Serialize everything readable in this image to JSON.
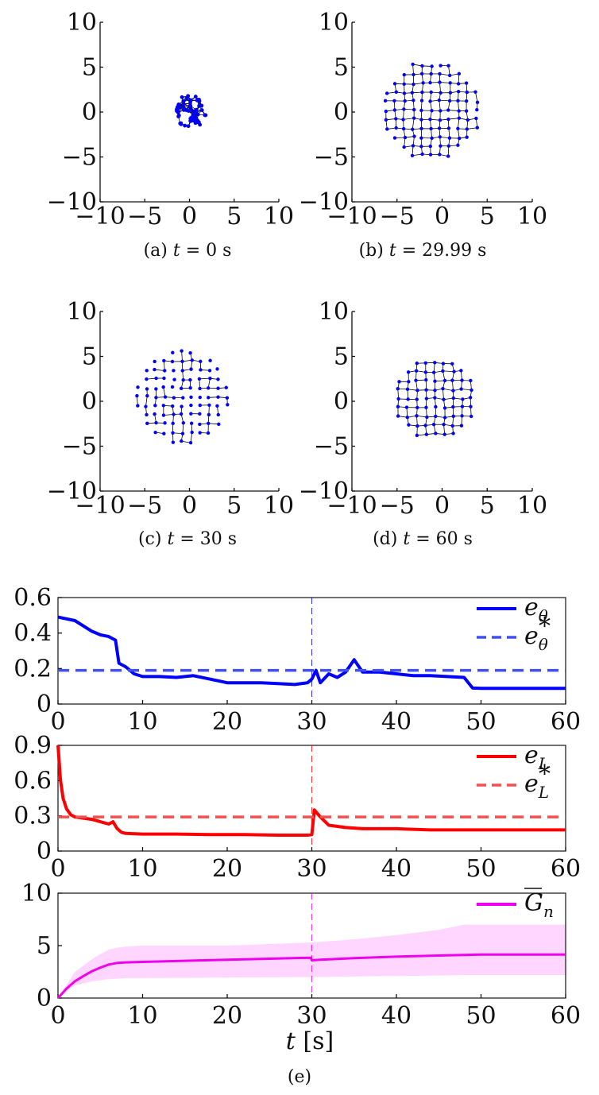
{
  "chart_data": [
    {
      "type": "scatter",
      "panel": "a",
      "caption": "(a) t = 0 s",
      "caption_prefix": "(a)",
      "caption_var": "t",
      "caption_eq": "= 0 s",
      "xlim": [
        -10,
        10
      ],
      "ylim": [
        -10,
        10
      ],
      "xticks": [
        "−10",
        "−5",
        "0",
        "5",
        "10"
      ],
      "yticks": [
        "10",
        "5",
        "0",
        "−5",
        "−10"
      ],
      "xtick_values": [
        -10,
        -5,
        0,
        5,
        10
      ],
      "ytick_values": [
        10,
        5,
        0,
        -5,
        -10
      ],
      "formation": {
        "center": [
          0,
          0
        ],
        "radius": 1.9,
        "spacing": 0.55,
        "style": "dense"
      },
      "color": "#0000ff"
    },
    {
      "type": "scatter",
      "panel": "b",
      "caption": "(b) t = 29.99 s",
      "caption_prefix": "(b)",
      "caption_var": "t",
      "caption_eq": "= 29.99 s",
      "xlim": [
        -10,
        10
      ],
      "ylim": [
        -10,
        10
      ],
      "xticks": [
        "−10",
        "−5",
        "0",
        "5",
        "10"
      ],
      "yticks": [
        "10",
        "5",
        "0",
        "−5",
        "−10"
      ],
      "xtick_values": [
        -10,
        -5,
        0,
        5,
        10
      ],
      "ytick_values": [
        10,
        5,
        0,
        -5,
        -10
      ],
      "formation": {
        "center": [
          -1.2,
          0.2
        ],
        "radius": 5.6,
        "spacing": 1.0,
        "style": "grid"
      },
      "color": "#0000ff"
    },
    {
      "type": "scatter",
      "panel": "c",
      "caption": "(c) t = 30 s",
      "caption_prefix": "(c)",
      "caption_var": "t",
      "caption_eq": "= 30 s",
      "xlim": [
        -10,
        10
      ],
      "ylim": [
        -10,
        10
      ],
      "xticks": [
        "−10",
        "−5",
        "0",
        "5",
        "10"
      ],
      "yticks": [
        "10",
        "5",
        "0",
        "−5",
        "−10"
      ],
      "xtick_values": [
        -10,
        -5,
        0,
        5,
        10
      ],
      "ytick_values": [
        10,
        5,
        0,
        -5,
        -10
      ],
      "formation": {
        "center": [
          -0.8,
          0.5
        ],
        "radius": 5.3,
        "spacing": 1.0,
        "style": "sparse"
      },
      "color": "#0000ff"
    },
    {
      "type": "scatter",
      "panel": "d",
      "caption": "(d) t = 60 s",
      "caption_prefix": "(d)",
      "caption_var": "t",
      "caption_eq": "= 60 s",
      "xlim": [
        -10,
        10
      ],
      "ylim": [
        -10,
        10
      ],
      "xticks": [
        "−10",
        "−5",
        "0",
        "5",
        "10"
      ],
      "yticks": [
        "10",
        "5",
        "0",
        "−5",
        "−10"
      ],
      "xtick_values": [
        -10,
        -5,
        0,
        5,
        10
      ],
      "ytick_values": [
        10,
        5,
        0,
        -5,
        -10
      ],
      "formation": {
        "center": [
          -0.8,
          0.3
        ],
        "radius": 4.6,
        "spacing": 1.0,
        "style": "grid"
      },
      "color": "#0000ff"
    },
    {
      "type": "line",
      "panel": "e1",
      "xlim": [
        0,
        60
      ],
      "ylim": [
        0,
        0.6
      ],
      "xticks": [
        "0",
        "10",
        "20",
        "30",
        "40",
        "50",
        "60"
      ],
      "xtick_values": [
        0,
        10,
        20,
        30,
        40,
        50,
        60
      ],
      "yticks": [
        "0",
        "0.2",
        "0.4",
        "0.6"
      ],
      "ytick_values": [
        0,
        0.2,
        0.4,
        0.6
      ],
      "event_x": 30,
      "legend_loc": "top-right",
      "series": [
        {
          "name": "eθ",
          "sym": "e",
          "sub": "θ",
          "sup": "",
          "color": "#0000ff",
          "style": "solid",
          "x": [
            0,
            2,
            4,
            5,
            6,
            6.8,
            7.2,
            8,
            9,
            10,
            12,
            14,
            16,
            18,
            20,
            22,
            24,
            26,
            28,
            29.5,
            30,
            30.5,
            31,
            32,
            33,
            34,
            35,
            36,
            38,
            40,
            42,
            44,
            46,
            48,
            49,
            50,
            55,
            60
          ],
          "y": [
            0.49,
            0.47,
            0.41,
            0.39,
            0.38,
            0.36,
            0.23,
            0.21,
            0.17,
            0.155,
            0.155,
            0.15,
            0.16,
            0.14,
            0.12,
            0.12,
            0.12,
            0.115,
            0.11,
            0.12,
            0.14,
            0.19,
            0.12,
            0.17,
            0.15,
            0.18,
            0.25,
            0.18,
            0.18,
            0.17,
            0.16,
            0.16,
            0.155,
            0.15,
            0.09,
            0.088,
            0.088,
            0.088
          ]
        },
        {
          "name": "e*θ",
          "sym": "e",
          "sub": "θ",
          "sup": "*",
          "color": "#4050f0",
          "style": "dashed",
          "x": [
            0,
            60
          ],
          "y": [
            0.19,
            0.19
          ]
        }
      ]
    },
    {
      "type": "line",
      "panel": "e2",
      "xlim": [
        0,
        60
      ],
      "ylim": [
        0,
        0.9
      ],
      "xticks": [
        "0",
        "10",
        "20",
        "30",
        "40",
        "50",
        "60"
      ],
      "xtick_values": [
        0,
        10,
        20,
        30,
        40,
        50,
        60
      ],
      "yticks": [
        "0",
        "0.3",
        "0.6",
        "0.9"
      ],
      "ytick_values": [
        0,
        0.3,
        0.6,
        0.9
      ],
      "event_x": 30,
      "legend_loc": "top-right",
      "series": [
        {
          "name": "eL",
          "sym": "e",
          "sub": "L",
          "sup": "",
          "color": "#ff0000",
          "style": "solid",
          "x": [
            0,
            0.3,
            0.6,
            1,
            1.5,
            2,
            3,
            4,
            5,
            6,
            6.5,
            7,
            7.5,
            8,
            10,
            14,
            18,
            22,
            26,
            29.5,
            30,
            30.3,
            31,
            32,
            34,
            36,
            40,
            44,
            48,
            50,
            55,
            60
          ],
          "y": [
            0.9,
            0.6,
            0.45,
            0.36,
            0.31,
            0.29,
            0.28,
            0.27,
            0.25,
            0.23,
            0.25,
            0.19,
            0.16,
            0.15,
            0.145,
            0.145,
            0.14,
            0.14,
            0.135,
            0.135,
            0.14,
            0.35,
            0.29,
            0.22,
            0.2,
            0.19,
            0.19,
            0.18,
            0.18,
            0.18,
            0.18,
            0.18
          ]
        },
        {
          "name": "e*L",
          "sym": "e",
          "sub": "L",
          "sup": "*",
          "color": "#f05050",
          "style": "dashed",
          "x": [
            0,
            60
          ],
          "y": [
            0.29,
            0.29
          ]
        }
      ]
    },
    {
      "type": "area",
      "panel": "e3",
      "xlim": [
        0,
        60
      ],
      "ylim": [
        0,
        10
      ],
      "xticks": [
        "0",
        "10",
        "20",
        "30",
        "40",
        "50",
        "60"
      ],
      "xtick_values": [
        0,
        10,
        20,
        30,
        40,
        50,
        60
      ],
      "yticks": [
        "0",
        "5",
        "10"
      ],
      "ytick_values": [
        0,
        5,
        10
      ],
      "xlabel": "t [s]",
      "xlabel_var": "t",
      "xlabel_unit": "[s]",
      "event_x": 30,
      "legend_loc": "top-right",
      "series": [
        {
          "name": "Ḡn",
          "sym": "G",
          "sub": "n",
          "color": "#ee00ee",
          "style": "solid",
          "x": [
            0,
            1,
            2,
            3,
            4,
            5,
            6,
            7,
            8,
            10,
            15,
            20,
            25,
            29.9,
            30,
            31,
            35,
            40,
            45,
            50,
            55,
            60
          ],
          "y": [
            0,
            0.9,
            1.6,
            2.1,
            2.55,
            2.9,
            3.2,
            3.35,
            3.4,
            3.45,
            3.55,
            3.65,
            3.75,
            3.85,
            3.6,
            3.65,
            3.8,
            3.95,
            4.05,
            4.15,
            4.15,
            4.15
          ],
          "band_x": [
            0,
            2,
            4,
            5,
            6,
            7,
            8,
            10,
            20,
            30,
            35,
            40,
            45,
            48,
            50,
            55,
            60
          ],
          "band_upper": [
            0,
            2.5,
            3.7,
            4.2,
            4.6,
            4.8,
            4.9,
            5.0,
            5.0,
            5.3,
            5.6,
            6.0,
            6.5,
            7.0,
            7.0,
            7.0,
            7.0
          ],
          "band_lower": [
            0,
            1.2,
            1.6,
            1.7,
            1.8,
            1.85,
            1.9,
            1.9,
            1.95,
            2.0,
            2.05,
            2.1,
            2.15,
            2.2,
            2.2,
            2.2,
            2.2
          ],
          "band_color": "#ffd6ff"
        }
      ]
    }
  ],
  "figure_caption": "(e)"
}
